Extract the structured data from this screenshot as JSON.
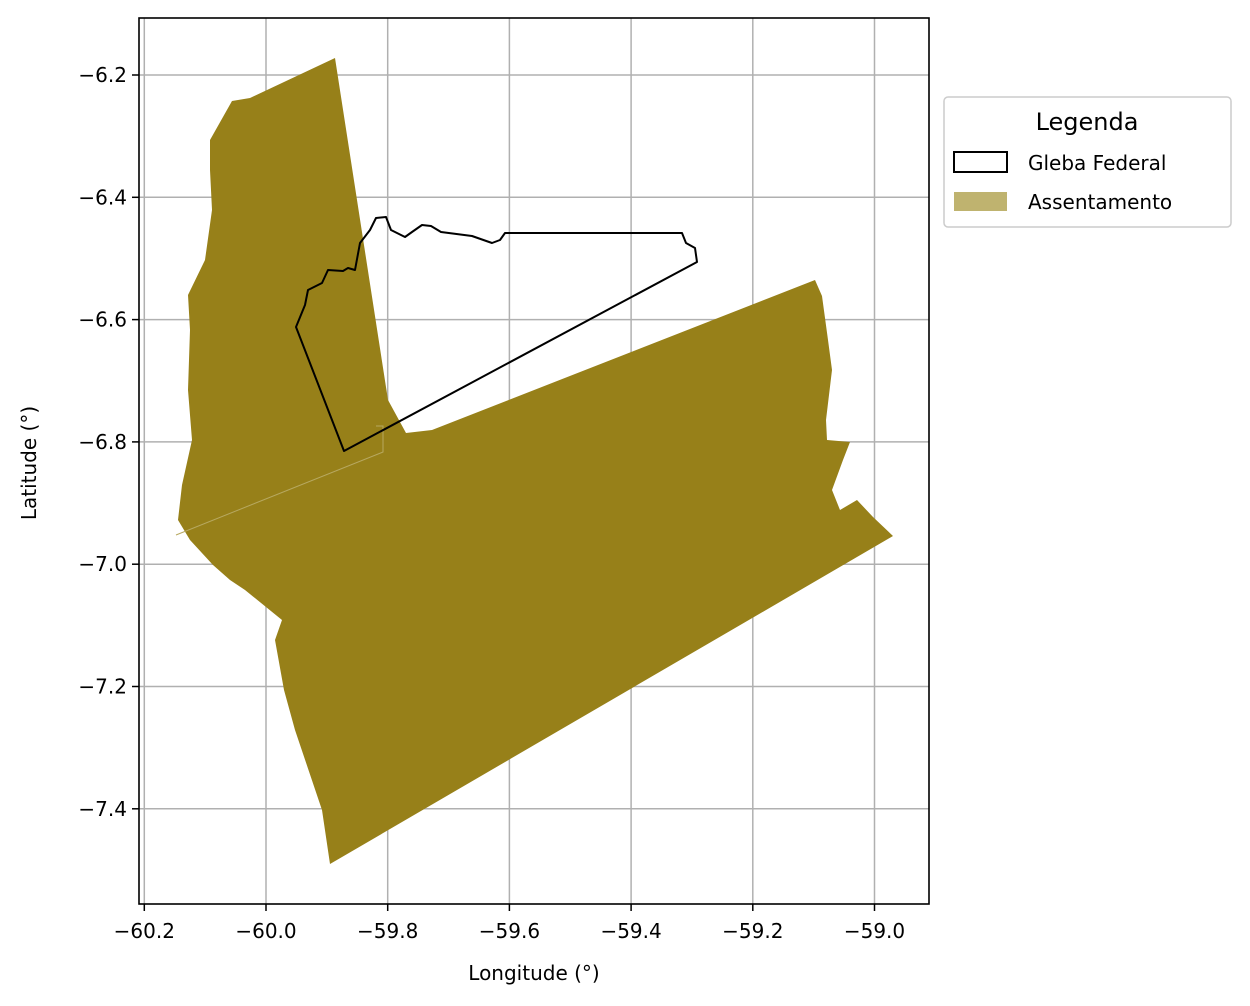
{
  "chart_data": {
    "type": "map",
    "title": "",
    "xlabel": "Longitude (°)",
    "ylabel": "Latitude (°)",
    "xlim": [
      -60.21,
      -58.91
    ],
    "ylim": [
      -7.56,
      -6.11
    ],
    "xticks": [
      -60.2,
      -60.0,
      -59.8,
      -59.6,
      -59.4,
      -59.2,
      -59.0
    ],
    "xtick_labels": [
      "−60.2",
      "−60.0",
      "−59.8",
      "−59.6",
      "−59.4",
      "−59.2",
      "−59.0"
    ],
    "yticks": [
      -6.2,
      -6.4,
      -6.6,
      -6.8,
      -7.0,
      -7.2,
      -7.4
    ],
    "ytick_labels": [
      "−6.2",
      "−6.4",
      "−6.6",
      "−6.8",
      "−7.0",
      "−7.2",
      "−7.4"
    ],
    "grid": true,
    "legend": {
      "title": "Legenda",
      "placement": "outside upper right",
      "entries": [
        {
          "label": "Gleba Federal",
          "style": "outline",
          "color": "#000000"
        },
        {
          "label": "Assentamento",
          "style": "fill",
          "color": "#bfb36f"
        }
      ]
    },
    "layers": [
      {
        "name": "Assentamento",
        "fill": "#978019",
        "polygons": [
          [
            [
              -60.09,
              -6.31
            ],
            [
              -60.05,
              -6.24
            ],
            [
              -60.03,
              -6.25
            ],
            [
              -59.88,
              -6.17
            ],
            [
              -59.79,
              -6.74
            ],
            [
              -59.76,
              -6.8
            ],
            [
              -59.73,
              -6.79
            ],
            [
              -59.1,
              -6.54
            ],
            [
              -59.08,
              -6.57
            ],
            [
              -59.08,
              -6.63
            ],
            [
              -59.07,
              -6.68
            ],
            [
              -59.08,
              -6.76
            ],
            [
              -59.08,
              -6.79
            ],
            [
              -59.04,
              -6.8
            ],
            [
              -59.05,
              -6.83
            ],
            [
              -59.07,
              -6.87
            ],
            [
              -59.06,
              -6.93
            ],
            [
              -59.03,
              -6.93
            ],
            [
              -59.0,
              -6.95
            ],
            [
              -58.97,
              -6.95
            ],
            [
              -59.88,
              -7.48
            ],
            [
              -59.89,
              -7.44
            ],
            [
              -59.92,
              -7.34
            ],
            [
              -59.94,
              -7.27
            ],
            [
              -59.95,
              -7.2
            ],
            [
              -59.94,
              -7.18
            ],
            [
              -59.99,
              -7.1
            ],
            [
              -60.01,
              -7.07
            ],
            [
              -60.05,
              -7.05
            ],
            [
              -60.09,
              -7.04
            ],
            [
              -60.12,
              -7.0
            ],
            [
              -60.14,
              -6.95
            ],
            [
              -60.13,
              -6.88
            ],
            [
              -60.11,
              -6.82
            ],
            [
              -60.12,
              -6.74
            ],
            [
              -60.12,
              -6.64
            ],
            [
              -60.12,
              -6.58
            ],
            [
              -60.11,
              -6.52
            ],
            [
              -60.1,
              -6.44
            ],
            [
              -60.09,
              -6.38
            ],
            [
              -60.09,
              -6.34
            ]
          ]
        ]
      },
      {
        "name": "Gleba Federal",
        "stroke": "#000000",
        "polygons": [
          [
            [
              -59.87,
              -6.82
            ],
            [
              -59.95,
              -6.62
            ],
            [
              -59.93,
              -6.57
            ],
            [
              -59.94,
              -6.56
            ],
            [
              -59.9,
              -6.53
            ],
            [
              -59.88,
              -6.52
            ],
            [
              -59.86,
              -6.53
            ],
            [
              -59.85,
              -6.51
            ],
            [
              -59.84,
              -6.48
            ],
            [
              -59.82,
              -6.44
            ],
            [
              -59.8,
              -6.44
            ],
            [
              -59.8,
              -6.46
            ],
            [
              -59.78,
              -6.47
            ],
            [
              -59.77,
              -6.46
            ],
            [
              -59.76,
              -6.45
            ],
            [
              -59.73,
              -6.46
            ],
            [
              -59.68,
              -6.46
            ],
            [
              -59.64,
              -6.48
            ],
            [
              -59.62,
              -6.47
            ],
            [
              -59.61,
              -6.46
            ],
            [
              -59.32,
              -6.46
            ],
            [
              -59.3,
              -6.47
            ],
            [
              -59.3,
              -6.49
            ],
            [
              -59.29,
              -6.5
            ],
            [
              -59.87,
              -6.82
            ]
          ]
        ]
      }
    ]
  }
}
